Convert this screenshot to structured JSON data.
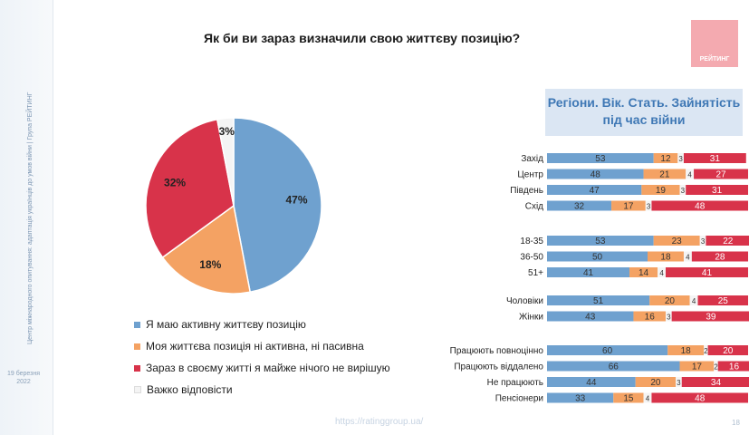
{
  "sidebar": {
    "text": "Центр міжнародного опитування: адаптація українців до умов війни | Група РЕЙТИНГ",
    "date_line1": "19 березня",
    "date_line2": "2022"
  },
  "title": "Як би ви зараз визначили свою життєву позицію?",
  "logo_text": "РЕЙТИНГ",
  "subtitle_line1": "Регіони. Вік. Стать. Зайнятість",
  "subtitle_line2": "під час війни",
  "footer": {
    "url": "https://ratinggroup.ua/",
    "page": "18"
  },
  "chart_data": [
    {
      "type": "pie",
      "categories": [
        "Я маю активну життєву позицію",
        "Моя життєва позиція ні активна, ні пасивна",
        "Зараз в своєму житті я майже нічого не вирішую",
        "Важко відповісти"
      ],
      "values": [
        47,
        18,
        32,
        3
      ],
      "labels": [
        "47%",
        "18%",
        "32%",
        "3%"
      ],
      "colors": [
        "#6fa1cf",
        "#f4a263",
        "#d8334a",
        "#f4f4f4"
      ],
      "legend_position": "bottom"
    },
    {
      "type": "bar",
      "orientation": "horizontal-stacked",
      "categories": [
        "Захід",
        "Центр",
        "Південь",
        "Схід",
        "18-35",
        "36-50",
        "51+",
        "Чоловіки",
        "Жінки",
        "Працюють повноцінно",
        "Працюють віддалено",
        "Не працюють",
        "Пенсіонери"
      ],
      "groups": [
        [
          0,
          1,
          2,
          3
        ],
        [
          4,
          5,
          6
        ],
        [
          7,
          8
        ],
        [
          9,
          10,
          11,
          12
        ]
      ],
      "series": [
        {
          "values": [
            53,
            48,
            47,
            32,
            53,
            50,
            41,
            51,
            43,
            60,
            66,
            44,
            33
          ],
          "color": "#6fa1cf"
        },
        {
          "values": [
            12,
            21,
            19,
            17,
            23,
            18,
            14,
            20,
            16,
            18,
            17,
            20,
            15
          ],
          "color": "#f4a263"
        },
        {
          "values": [
            3,
            4,
            3,
            3,
            3,
            4,
            4,
            4,
            3,
            2,
            2,
            3,
            4
          ],
          "color": "#f4f4f4"
        },
        {
          "values": [
            31,
            27,
            31,
            48,
            22,
            28,
            41,
            25,
            39,
            20,
            16,
            34,
            48
          ],
          "color": "#d8334a"
        }
      ]
    }
  ]
}
